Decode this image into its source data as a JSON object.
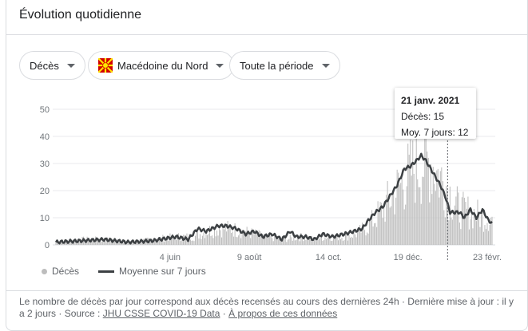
{
  "header": {
    "title": "Évolution quotidienne"
  },
  "filters": {
    "metric": "Décès",
    "country": "Macédoine du Nord",
    "period": "Toute la période"
  },
  "colors": {
    "bars": "#bdbdbd",
    "line": "#3c4043",
    "grid": "#e8eaed",
    "flag_red": "#d20000",
    "flag_yellow": "#ffe600"
  },
  "tooltip": {
    "date": "21 janv. 2021",
    "deaths": "Décès: 15",
    "avg": "Moy. 7 jours: 12"
  },
  "legend": {
    "bars": "Décès",
    "line": "Moyenne sur 7 jours"
  },
  "footer": {
    "text": "Le nombre de décès par jour correspond aux décès recensés au cours des dernières 24h",
    "sep1": " · ",
    "updated": "Dernière mise à jour : il y a 2 jours",
    "sep2": " · ",
    "source_label": "Source : ",
    "source_link": "JHU CSSE COVID-19 Data",
    "sep3": " · ",
    "about_link": "À propos de ces données"
  },
  "chart_data": {
    "type": "bar",
    "ylim": [
      0,
      50
    ],
    "yticks": [
      0,
      10,
      20,
      30,
      40,
      50
    ],
    "xtick_labels": [
      "4 juin",
      "9 août",
      "14 oct.",
      "19 déc.",
      "23 févr."
    ],
    "xtick_day_index": [
      95,
      161,
      227,
      293,
      359
    ],
    "highlight_day_index": [
      326
    ],
    "series": [
      {
        "name": "Décès",
        "kind": "bar",
        "x_day_index_range": [
          0,
          363
        ],
        "values_anchors": [
          [
            0,
            1
          ],
          [
            20,
            2
          ],
          [
            40,
            2
          ],
          [
            60,
            1
          ],
          [
            80,
            2
          ],
          [
            100,
            3
          ],
          [
            115,
            3
          ],
          [
            125,
            5
          ],
          [
            135,
            6
          ],
          [
            145,
            6
          ],
          [
            155,
            5
          ],
          [
            165,
            4
          ],
          [
            175,
            3
          ],
          [
            190,
            2
          ],
          [
            205,
            3
          ],
          [
            215,
            2
          ],
          [
            225,
            3
          ],
          [
            240,
            3
          ],
          [
            250,
            4
          ],
          [
            260,
            7
          ],
          [
            270,
            12
          ],
          [
            280,
            18
          ],
          [
            290,
            24
          ],
          [
            300,
            29
          ],
          [
            305,
            30
          ],
          [
            312,
            31
          ],
          [
            318,
            26
          ],
          [
            325,
            22
          ],
          [
            330,
            17
          ],
          [
            336,
            13
          ],
          [
            345,
            12
          ],
          [
            352,
            11
          ],
          [
            358,
            10
          ],
          [
            363,
            10
          ]
        ]
      },
      {
        "name": "Moyenne sur 7 jours",
        "kind": "line",
        "x_day_index_range": [
          0,
          363
        ],
        "values_anchors": [
          [
            0,
            1
          ],
          [
            20,
            1.5
          ],
          [
            40,
            2
          ],
          [
            60,
            1
          ],
          [
            80,
            1.5
          ],
          [
            100,
            3
          ],
          [
            110,
            2
          ],
          [
            118,
            6
          ],
          [
            125,
            5
          ],
          [
            135,
            7
          ],
          [
            142,
            7
          ],
          [
            150,
            6
          ],
          [
            158,
            4
          ],
          [
            165,
            5
          ],
          [
            172,
            3
          ],
          [
            180,
            4
          ],
          [
            188,
            2
          ],
          [
            195,
            5
          ],
          [
            200,
            3
          ],
          [
            208,
            3
          ],
          [
            215,
            2
          ],
          [
            222,
            4
          ],
          [
            230,
            3
          ],
          [
            240,
            4
          ],
          [
            248,
            5
          ],
          [
            255,
            6
          ],
          [
            260,
            9
          ],
          [
            266,
            12
          ],
          [
            272,
            14
          ],
          [
            278,
            18
          ],
          [
            284,
            22
          ],
          [
            290,
            28
          ],
          [
            295,
            29
          ],
          [
            300,
            31
          ],
          [
            304,
            33
          ],
          [
            308,
            31
          ],
          [
            312,
            28
          ],
          [
            316,
            25
          ],
          [
            320,
            22
          ],
          [
            324,
            18
          ],
          [
            328,
            12
          ],
          [
            332,
            12
          ],
          [
            336,
            12
          ],
          [
            340,
            10
          ],
          [
            345,
            13
          ],
          [
            350,
            10
          ],
          [
            355,
            13
          ],
          [
            360,
            9
          ],
          [
            363,
            8
          ]
        ]
      }
    ]
  }
}
